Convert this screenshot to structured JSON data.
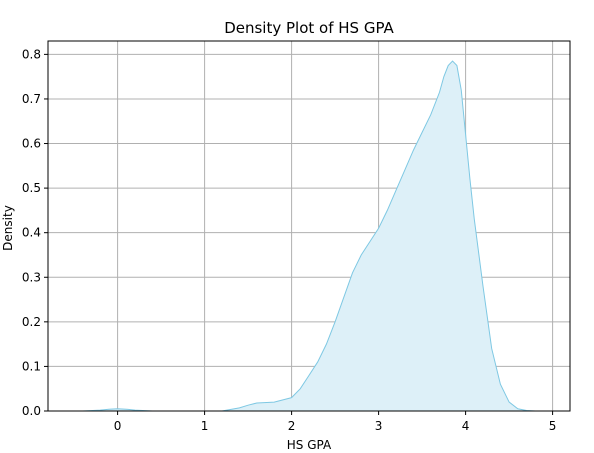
{
  "chart_data": {
    "type": "area",
    "title": "Density Plot of HS GPA",
    "xlabel": "HS GPA",
    "ylabel": "Density",
    "xlim": [
      -0.8,
      5.2
    ],
    "ylim": [
      0,
      0.83
    ],
    "x_ticks": [
      0,
      1,
      2,
      3,
      4,
      5
    ],
    "y_ticks": [
      0.0,
      0.1,
      0.2,
      0.3,
      0.4,
      0.5,
      0.6,
      0.7,
      0.8
    ],
    "grid": true,
    "line_color": "#7ec8e3",
    "fill_color": "#ddf0f8",
    "series": [
      {
        "x": [
          -0.4,
          -0.2,
          -0.1,
          0.0,
          0.1,
          0.2,
          0.4,
          0.8,
          1.2,
          1.4,
          1.5,
          1.6,
          1.8,
          2.0,
          2.1,
          2.2,
          2.3,
          2.4,
          2.5,
          2.6,
          2.7,
          2.8,
          2.9,
          3.0,
          3.1,
          3.2,
          3.3,
          3.4,
          3.5,
          3.6,
          3.7,
          3.75,
          3.8,
          3.85,
          3.9,
          3.95,
          4.0,
          4.05,
          4.1,
          4.2,
          4.3,
          4.4,
          4.5,
          4.6,
          4.7,
          4.8
        ],
        "y": [
          0.0,
          0.002,
          0.004,
          0.005,
          0.004,
          0.002,
          0.0,
          0.0,
          0.0,
          0.007,
          0.013,
          0.018,
          0.02,
          0.03,
          0.05,
          0.08,
          0.11,
          0.15,
          0.2,
          0.255,
          0.31,
          0.35,
          0.38,
          0.41,
          0.45,
          0.495,
          0.54,
          0.585,
          0.625,
          0.665,
          0.715,
          0.75,
          0.775,
          0.785,
          0.775,
          0.72,
          0.62,
          0.52,
          0.43,
          0.28,
          0.14,
          0.06,
          0.02,
          0.005,
          0.001,
          0.0
        ]
      }
    ]
  }
}
